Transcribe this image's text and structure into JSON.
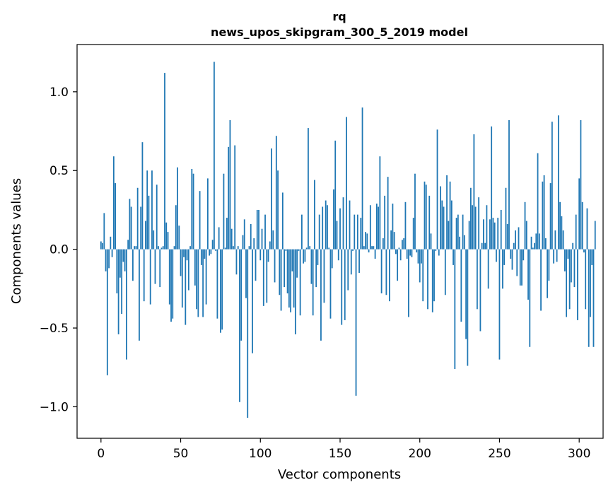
{
  "chart_data": {
    "type": "bar",
    "title": "rq",
    "subtitle": "news_upos_skipgram_300_5_2019 model",
    "xlabel": "Vector components",
    "ylabel": "Components values",
    "xlim": [
      -15,
      315
    ],
    "ylim": [
      -1.2,
      1.3
    ],
    "xticks": [
      0,
      50,
      100,
      150,
      200,
      250,
      300
    ],
    "xtick_labels": [
      "0",
      "50",
      "100",
      "150",
      "200",
      "250",
      "300"
    ],
    "yticks": [
      -1.0,
      -0.5,
      0.0,
      0.5,
      1.0
    ],
    "ytick_labels": [
      "−1.0",
      "−0.5",
      "0.0",
      "0.5",
      "1.0"
    ],
    "grid": false,
    "bar_color": "#1f77b4",
    "x_start": 0,
    "values": [
      0.05,
      0.04,
      0.23,
      -0.14,
      -0.8,
      -0.12,
      0.08,
      -0.05,
      0.59,
      0.42,
      -0.28,
      -0.54,
      -0.18,
      -0.41,
      -0.08,
      -0.14,
      -0.7,
      0.06,
      0.32,
      0.27,
      -0.2,
      0.02,
      0.02,
      0.39,
      -0.58,
      0.27,
      0.68,
      -0.33,
      0.18,
      0.5,
      0.34,
      -0.35,
      0.5,
      0.12,
      -0.22,
      0.41,
      0.02,
      -0.24,
      0.01,
      0.02,
      1.12,
      0.17,
      0.11,
      -0.35,
      -0.46,
      -0.44,
      0.02,
      0.28,
      0.52,
      0.15,
      -0.17,
      -0.37,
      -0.05,
      -0.48,
      -0.07,
      -0.26,
      0.02,
      0.51,
      0.48,
      -0.23,
      -0.38,
      -0.43,
      0.37,
      -0.1,
      -0.43,
      -0.06,
      -0.35,
      0.45,
      -0.04,
      -0.03,
      0.06,
      1.19,
      -0.01,
      -0.44,
      0.14,
      -0.53,
      -0.51,
      0.48,
      0.01,
      0.2,
      0.65,
      0.82,
      0.13,
      0.02,
      0.66,
      -0.16,
      0.02,
      -0.97,
      -0.58,
      0.09,
      0.19,
      -0.31,
      -1.07,
      0.02,
      0.16,
      -0.66,
      0.07,
      -0.2,
      0.25,
      0.25,
      -0.07,
      0.13,
      -0.36,
      0.22,
      -0.34,
      -0.08,
      0.05,
      0.64,
      0.12,
      -0.21,
      0.72,
      0.5,
      -0.29,
      -0.39,
      0.36,
      -0.24,
      -0.01,
      -0.28,
      -0.37,
      -0.4,
      -0.14,
      -0.37,
      -0.54,
      -0.18,
      -0.01,
      -0.42,
      0.22,
      -0.09,
      -0.08,
      0.01,
      0.77,
      0.02,
      -0.22,
      -0.42,
      0.44,
      -0.24,
      -0.1,
      0.22,
      -0.58,
      0.27,
      -0.34,
      0.31,
      0.28,
      0.01,
      -0.44,
      -0.12,
      0.38,
      0.69,
      0.18,
      -0.07,
      0.26,
      -0.48,
      0.33,
      -0.45,
      0.84,
      -0.26,
      0.31,
      -0.16,
      -0.01,
      0.22,
      -0.93,
      0.22,
      -0.15,
      0.2,
      0.9,
      0.02,
      0.11,
      0.1,
      -0.02,
      0.28,
      0.02,
      0.02,
      -0.06,
      0.29,
      0.27,
      0.59,
      -0.28,
      0.07,
      0.34,
      -0.29,
      0.46,
      -0.33,
      0.12,
      0.29,
      0.11,
      -0.03,
      -0.2,
      0.01,
      -0.07,
      0.06,
      0.07,
      0.3,
      -0.06,
      -0.43,
      -0.04,
      -0.05,
      0.2,
      0.48,
      -0.02,
      -0.09,
      -0.21,
      -0.09,
      -0.33,
      0.43,
      0.41,
      -0.38,
      0.34,
      0.1,
      -0.4,
      -0.33,
      -0.01,
      0.76,
      -0.04,
      0.4,
      0.31,
      0.27,
      -0.29,
      0.47,
      0.18,
      0.43,
      0.31,
      -0.1,
      -0.76,
      0.2,
      0.22,
      0.08,
      -0.46,
      0.22,
      0.09,
      -0.57,
      -0.74,
      0.18,
      0.39,
      0.28,
      0.73,
      0.27,
      -0.38,
      0.33,
      -0.52,
      0.04,
      0.19,
      0.04,
      0.28,
      -0.25,
      0.19,
      0.78,
      0.2,
      0.17,
      -0.08,
      0.2,
      -0.7,
      0.25,
      -0.25,
      -0.1,
      0.39,
      0.16,
      0.82,
      -0.06,
      -0.13,
      0.04,
      0.12,
      -0.17,
      0.14,
      -0.23,
      -0.23,
      -0.07,
      0.3,
      0.18,
      -0.32,
      -0.62,
      0.08,
      0.01,
      0.04,
      0.1,
      0.61,
      0.1,
      -0.39,
      0.43,
      0.47,
      0.07,
      -0.31,
      -0.2,
      0.42,
      0.81,
      -0.09,
      0.12,
      -0.08,
      0.85,
      0.3,
      0.21,
      0.12,
      -0.14,
      -0.43,
      -0.06,
      -0.38,
      -0.21,
      0.04,
      -0.24,
      0.22,
      -0.45,
      0.45,
      0.82,
      0.3,
      -0.02,
      -0.38,
      0.26,
      -0.62,
      -0.43,
      -0.1,
      -0.62,
      0.18
    ]
  }
}
